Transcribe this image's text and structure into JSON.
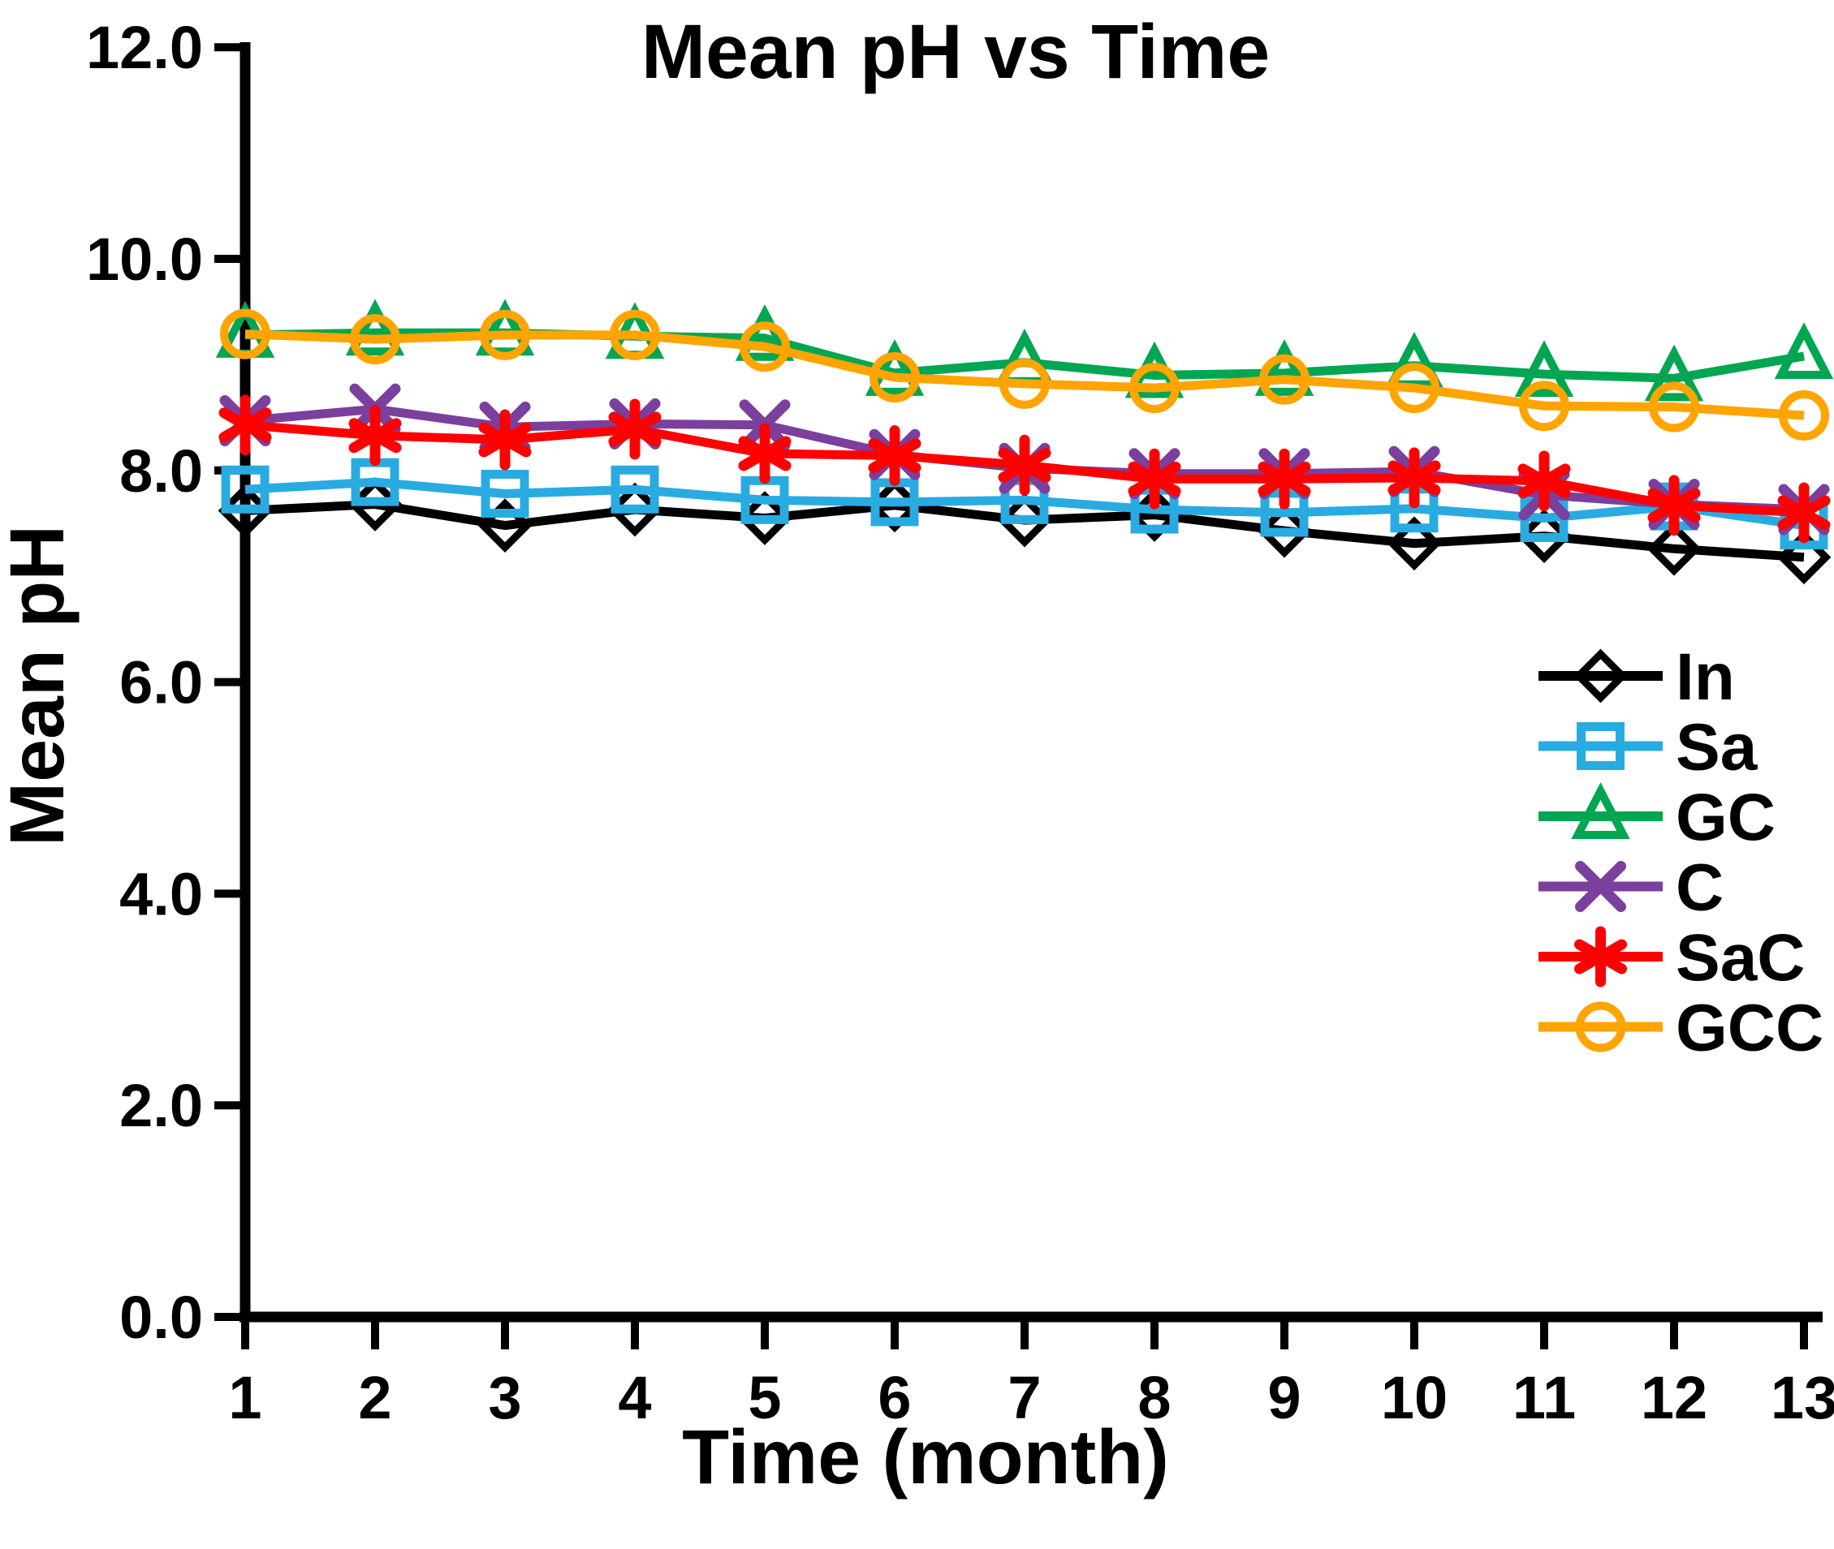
{
  "title": "Mean pH vs Time",
  "chart_data": {
    "type": "line",
    "title": "Mean pH vs Time",
    "xlabel": "Time (month)",
    "ylabel": "Mean pH",
    "x": [
      1,
      2,
      3,
      4,
      5,
      6,
      7,
      8,
      9,
      10,
      11,
      12,
      13
    ],
    "xtick_labels": [
      "1",
      "2",
      "3",
      "4",
      "5",
      "6",
      "7",
      "8",
      "9",
      "10",
      "11",
      "12",
      "13"
    ],
    "ylim": [
      0.0,
      12.0
    ],
    "yticks": [
      0.0,
      2.0,
      4.0,
      6.0,
      8.0,
      10.0,
      12.0
    ],
    "ytick_labels": [
      "0.0",
      "2.0",
      "4.0",
      "6.0",
      "8.0",
      "10.0",
      "12.0"
    ],
    "grid": false,
    "legend_position": "right-middle",
    "series": [
      {
        "name": "In",
        "color": "#000000",
        "marker": "diamond",
        "values": [
          7.62,
          7.68,
          7.48,
          7.63,
          7.55,
          7.67,
          7.53,
          7.58,
          7.43,
          7.31,
          7.38,
          7.26,
          7.18
        ]
      },
      {
        "name": "Sa",
        "color": "#29ABE2",
        "marker": "square",
        "values": [
          7.82,
          7.89,
          7.78,
          7.82,
          7.72,
          7.7,
          7.72,
          7.63,
          7.6,
          7.64,
          7.55,
          7.66,
          7.48
        ]
      },
      {
        "name": "GC",
        "color": "#00A651",
        "marker": "triangle",
        "values": [
          9.28,
          9.3,
          9.3,
          9.27,
          9.25,
          8.92,
          9.02,
          8.9,
          8.92,
          8.99,
          8.91,
          8.87,
          9.08
        ]
      },
      {
        "name": "C",
        "color": "#7B3F9D",
        "marker": "x",
        "values": [
          8.47,
          8.58,
          8.41,
          8.44,
          8.43,
          8.15,
          8.02,
          7.97,
          7.97,
          7.99,
          7.77,
          7.68,
          7.63
        ]
      },
      {
        "name": "SaC",
        "color": "#FF0000",
        "marker": "asterisk",
        "values": [
          8.43,
          8.33,
          8.29,
          8.39,
          8.16,
          8.14,
          8.05,
          7.92,
          7.92,
          7.93,
          7.9,
          7.67,
          7.6
        ]
      },
      {
        "name": "GCC",
        "color": "#FFA400",
        "marker": "circle",
        "values": [
          9.29,
          9.24,
          9.28,
          9.28,
          9.17,
          8.88,
          8.82,
          8.78,
          8.86,
          8.78,
          8.61,
          8.6,
          8.52
        ]
      }
    ]
  }
}
